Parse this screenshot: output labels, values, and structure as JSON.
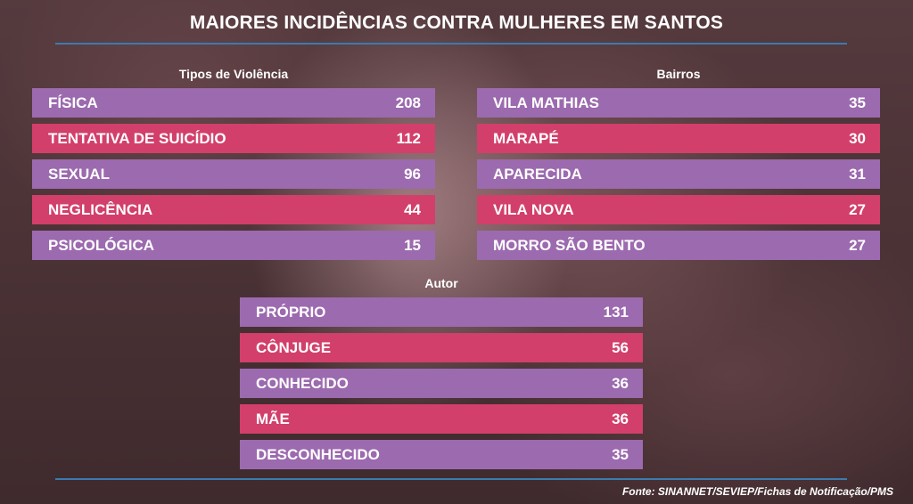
{
  "title": "MAIORES INCIDÊNCIAS CONTRA MULHERES EM SANTOS",
  "source": "Fonte: SINANNET/SEVIEP/Fichas de Notificação/PMS",
  "colors": {
    "purple": "#9c6aaf",
    "pink": "#d23f6b",
    "rule": "#3b7bb0"
  },
  "chart_data": [
    {
      "type": "table",
      "title": "Tipos de Violência",
      "categories": [
        "FÍSICA",
        "TENTATIVA DE SUICÍDIO",
        "SEXUAL",
        "NEGLICÊNCIA",
        "PSICOLÓGICA"
      ],
      "values": [
        "208",
        "112",
        "96",
        "44",
        "15"
      ]
    },
    {
      "type": "table",
      "title": "Bairros",
      "categories": [
        "VILA MATHIAS",
        "MARAPÉ",
        "APARECIDA",
        "VILA NOVA",
        "MORRO SÃO BENTO"
      ],
      "values": [
        "35",
        "30",
        "31",
        "27",
        "27"
      ]
    },
    {
      "type": "table",
      "title": "Autor",
      "categories": [
        "PRÓPRIO",
        "CÔNJUGE",
        "CONHECIDO",
        "MÃE",
        "DESCONHECIDO"
      ],
      "values": [
        "131",
        "56",
        "36",
        "36",
        "35"
      ]
    }
  ]
}
